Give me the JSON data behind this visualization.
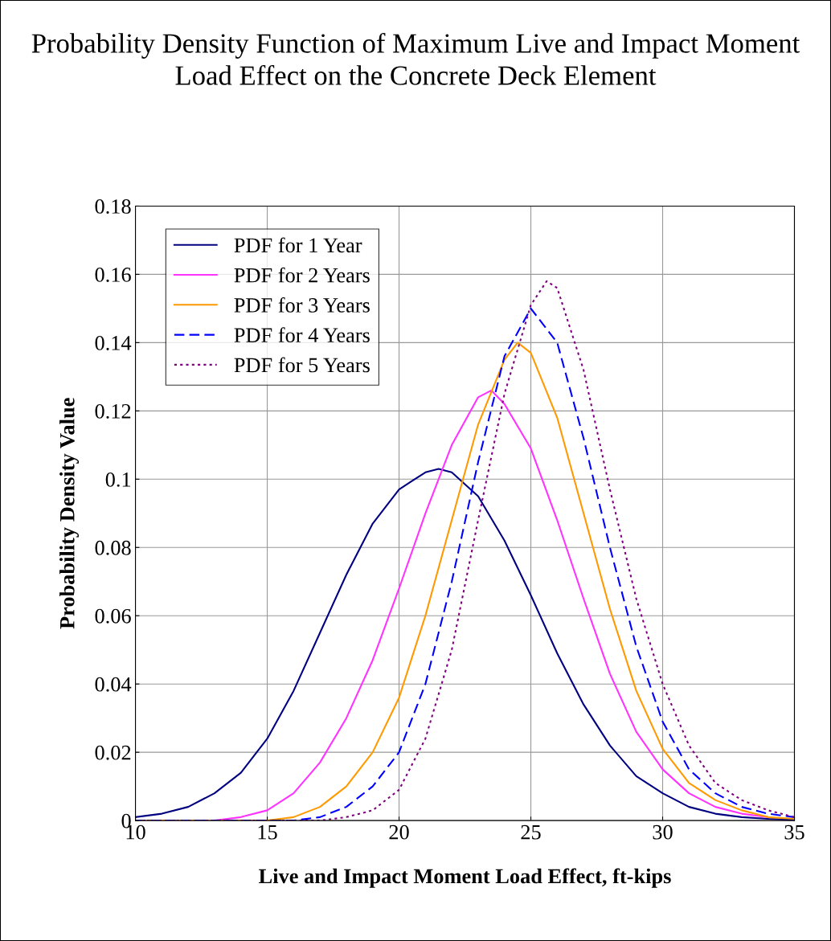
{
  "chart_data": {
    "type": "line",
    "title": "Probability Density Function of Maximum Live and Impact Moment Load Effect on the Concrete Deck Element",
    "xlabel": "Live and Impact Moment Load Effect, ft-kips",
    "ylabel": "Probability Density Value",
    "xlim": [
      10,
      35
    ],
    "xticks": [
      10,
      15,
      20,
      25,
      30,
      35
    ],
    "ylim": [
      0,
      0.18
    ],
    "yticks": [
      0,
      0.02,
      0.04,
      0.06,
      0.08,
      0.1,
      0.12,
      0.14,
      0.16,
      0.18
    ],
    "grid": true,
    "legend": "top left",
    "marker": "none",
    "series": [
      {
        "name": "PDF for 1 Year",
        "color": "#000080",
        "line_style": "solid",
        "x": [
          10,
          11,
          12,
          13,
          14,
          15,
          16,
          17,
          18,
          19,
          20,
          21,
          21.5,
          22,
          23,
          24,
          25,
          26,
          27,
          28,
          29,
          30,
          31,
          32,
          33,
          34,
          35
        ],
        "values": [
          0.001,
          0.002,
          0.004,
          0.008,
          0.014,
          0.024,
          0.038,
          0.055,
          0.072,
          0.087,
          0.097,
          0.102,
          0.103,
          0.102,
          0.095,
          0.082,
          0.066,
          0.049,
          0.034,
          0.022,
          0.013,
          0.008,
          0.004,
          0.002,
          0.001,
          0.0005,
          0.0002
        ]
      },
      {
        "name": "PDF for 2 Years",
        "color": "#ff33ff",
        "line_style": "solid",
        "x": [
          10,
          13,
          14,
          15,
          16,
          17,
          18,
          19,
          20,
          21,
          22,
          23,
          23.5,
          24,
          25,
          26,
          27,
          28,
          29,
          30,
          31,
          32,
          33,
          34
        ],
        "values": [
          0,
          0,
          0.001,
          0.003,
          0.008,
          0.017,
          0.03,
          0.047,
          0.068,
          0.09,
          0.11,
          0.124,
          0.126,
          0.122,
          0.109,
          0.088,
          0.065,
          0.043,
          0.026,
          0.015,
          0.008,
          0.004,
          0.002,
          0.001
        ]
      },
      {
        "name": "PDF for 3 Years",
        "color": "#ff9900",
        "line_style": "solid",
        "x": [
          10,
          15,
          16,
          17,
          18,
          19,
          20,
          21,
          22,
          23,
          24,
          24.5,
          25,
          26,
          27,
          28,
          29,
          30,
          31,
          32,
          33,
          34,
          35
        ],
        "values": [
          0,
          0,
          0.001,
          0.004,
          0.01,
          0.02,
          0.036,
          0.06,
          0.088,
          0.116,
          0.135,
          0.14,
          0.137,
          0.118,
          0.09,
          0.062,
          0.038,
          0.021,
          0.011,
          0.006,
          0.003,
          0.001,
          0.0005
        ]
      },
      {
        "name": "PDF for 4 Years",
        "color": "#0000ff",
        "line_style": "dashed",
        "x": [
          10,
          16,
          17,
          18,
          19,
          20,
          21,
          22,
          23,
          24,
          25,
          26,
          27,
          28,
          29,
          30,
          31,
          32,
          33,
          34,
          35
        ],
        "values": [
          0,
          0,
          0.001,
          0.004,
          0.01,
          0.02,
          0.04,
          0.07,
          0.105,
          0.136,
          0.15,
          0.14,
          0.112,
          0.08,
          0.051,
          0.029,
          0.015,
          0.008,
          0.004,
          0.002,
          0.001
        ]
      },
      {
        "name": "PDF for 5 Years",
        "color": "#800080",
        "line_style": "dotted",
        "x": [
          10,
          17,
          18,
          19,
          20,
          21,
          22,
          23,
          24,
          25,
          25.6,
          26,
          27,
          28,
          29,
          30,
          31,
          32,
          33,
          34,
          35
        ],
        "values": [
          0,
          0,
          0.001,
          0.003,
          0.009,
          0.024,
          0.05,
          0.088,
          0.125,
          0.151,
          0.158,
          0.156,
          0.132,
          0.097,
          0.065,
          0.04,
          0.022,
          0.011,
          0.006,
          0.003,
          0.001
        ]
      }
    ]
  }
}
